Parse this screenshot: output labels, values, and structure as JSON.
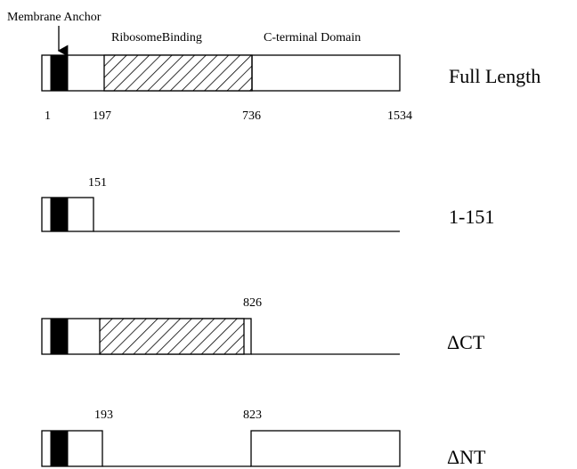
{
  "header_labels": {
    "membrane_anchor": "Membrane Anchor",
    "ribosome_binding": "RibosomeBinding",
    "c_terminal": "C-terminal Domain"
  },
  "constructs": [
    {
      "id": "full-length",
      "label": "Full Length",
      "numbers": [
        "1",
        "197",
        "736",
        "1534"
      ]
    },
    {
      "id": "1-151",
      "label": "1-151",
      "numbers": [
        "151"
      ]
    },
    {
      "id": "delta-ct",
      "label": "ΔCT",
      "numbers": [
        "826"
      ]
    },
    {
      "id": "delta-nt",
      "label": "ΔNT",
      "numbers": [
        "193",
        "823"
      ]
    }
  ]
}
